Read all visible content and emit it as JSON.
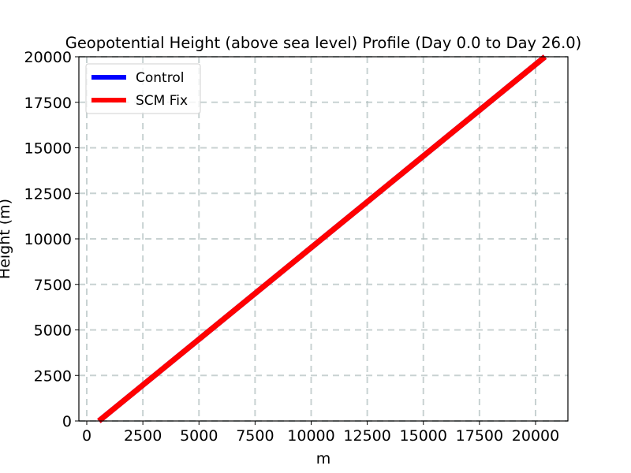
{
  "chart_data": {
    "type": "line",
    "title": "Geopotential Height (above sea level) Profile (Day 0.0 to Day 26.0)",
    "xlabel": "m",
    "ylabel": "Height (m)",
    "xlim": [
      -400,
      21400
    ],
    "ylim": [
      0,
      20000
    ],
    "xticks": [
      0,
      2500,
      5000,
      7500,
      10000,
      12500,
      15000,
      17500,
      20000
    ],
    "yticks": [
      0,
      2500,
      5000,
      7500,
      10000,
      12500,
      15000,
      17500,
      20000
    ],
    "grid": true,
    "legend_position": "upper left",
    "series": [
      {
        "name": "Control",
        "color": "#0000ff",
        "x": [
          540,
          20420
        ],
        "y": [
          0,
          20000
        ]
      },
      {
        "name": "SCM Fix",
        "color": "#ff0000",
        "x": [
          540,
          20420
        ],
        "y": [
          0,
          20000
        ]
      }
    ]
  }
}
